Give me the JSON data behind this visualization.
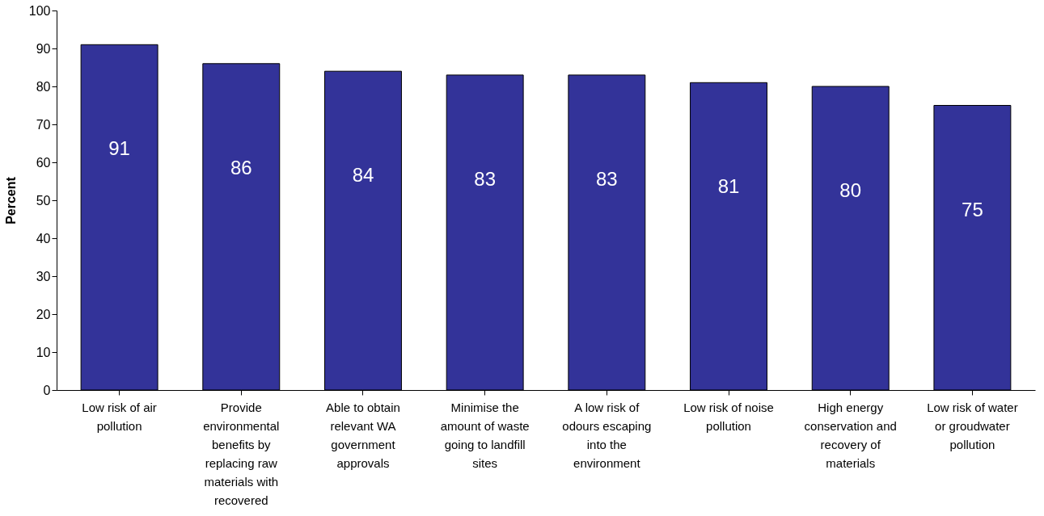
{
  "chart_data": {
    "type": "bar",
    "ylabel": "Percent",
    "categories": [
      "Low risk of air pollution",
      "Provide environmental benefits by replacing raw materials with recovered",
      "Able to obtain relevant WA government approvals",
      "Minimise the amount of waste going to landfill sites",
      "A low risk of odours escaping into the environment",
      "Low risk of noise pollution",
      "High energy conservation and recovery of materials",
      "Low risk of water or groudwater pollution"
    ],
    "values": [
      91,
      86,
      84,
      83,
      83,
      81,
      80,
      75
    ],
    "color": "#333399",
    "ylim": [
      0,
      100
    ],
    "yticks": [
      0,
      10,
      20,
      30,
      40,
      50,
      60,
      70,
      80,
      90,
      100
    ],
    "data_labels": true,
    "grid": false
  }
}
